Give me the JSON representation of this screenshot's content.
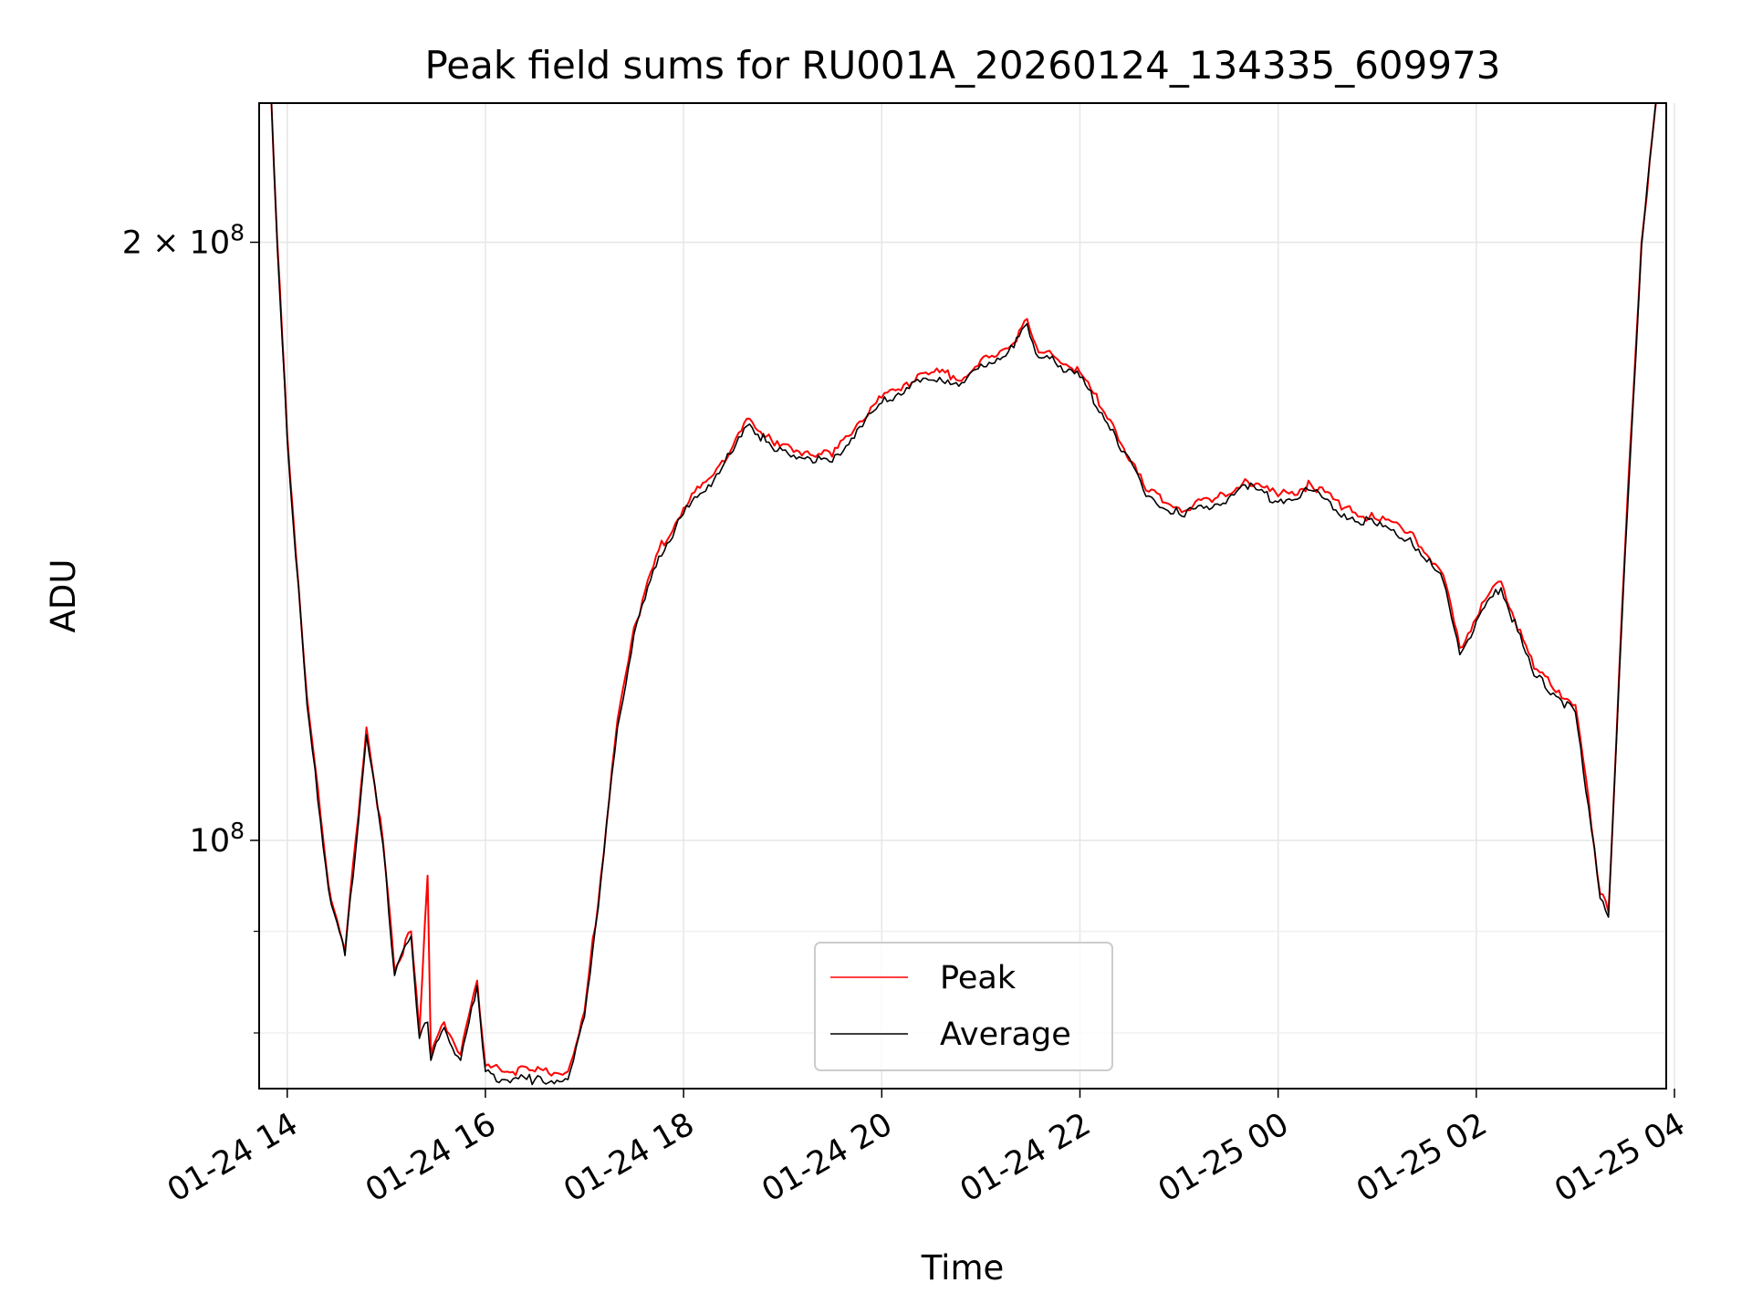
{
  "chart_data": {
    "type": "line",
    "title": "Peak field sums for RU001A_20260124_134335_609973",
    "xlabel": "Time",
    "ylabel": "ADU",
    "yscale": "log",
    "xlim": [
      "01-24 13:43",
      "01-25 03:55"
    ],
    "ylim": [
      75000000,
      235000000
    ],
    "grid": true,
    "legend_position": "bottom-center",
    "x_ticks": [
      "01-24 14",
      "01-24 16",
      "01-24 18",
      "01-24 20",
      "01-24 22",
      "01-25 00",
      "01-25 02",
      "01-25 04"
    ],
    "y_ticks": [
      {
        "value": 100000000,
        "label": "10^8",
        "base": "10",
        "exp": "8"
      },
      {
        "value": 200000000,
        "label": "2 × 10^8",
        "base": "2 × 10",
        "exp": "8"
      }
    ],
    "y_minor_ticks": [
      80000000,
      90000000
    ],
    "series": [
      {
        "name": "Peak",
        "color": "#ff0000",
        "points": [
          [
            "01-24 13:50",
            240000000
          ],
          [
            "01-24 13:54",
            200000000
          ],
          [
            "01-24 14:00",
            160000000
          ],
          [
            "01-24 14:12",
            118000000
          ],
          [
            "01-24 14:25",
            95000000
          ],
          [
            "01-24 14:35",
            88000000
          ],
          [
            "01-24 14:48",
            114000000
          ],
          [
            "01-24 14:58",
            100000000
          ],
          [
            "01-24 15:05",
            86000000
          ],
          [
            "01-24 15:15",
            90000000
          ],
          [
            "01-24 15:20",
            80000000
          ],
          [
            "01-24 15:25",
            96000000
          ],
          [
            "01-24 15:27",
            78000000
          ],
          [
            "01-24 15:35",
            81000000
          ],
          [
            "01-24 15:45",
            78000000
          ],
          [
            "01-24 15:55",
            85000000
          ],
          [
            "01-24 16:00",
            77000000
          ],
          [
            "01-24 16:10",
            76500000
          ],
          [
            "01-24 16:30",
            76500000
          ],
          [
            "01-24 16:50",
            76500000
          ],
          [
            "01-24 17:00",
            82000000
          ],
          [
            "01-24 17:10",
            96000000
          ],
          [
            "01-24 17:20",
            115000000
          ],
          [
            "01-24 17:30",
            128000000
          ],
          [
            "01-24 17:45",
            140000000
          ],
          [
            "01-24 18:00",
            147000000
          ],
          [
            "01-24 18:15",
            152000000
          ],
          [
            "01-24 18:30",
            158000000
          ],
          [
            "01-24 18:40",
            163000000
          ],
          [
            "01-24 18:55",
            158000000
          ],
          [
            "01-24 19:15",
            157000000
          ],
          [
            "01-24 19:30",
            156000000
          ],
          [
            "01-24 19:45",
            162000000
          ],
          [
            "01-24 20:00",
            167000000
          ],
          [
            "01-24 20:15",
            170000000
          ],
          [
            "01-24 20:35",
            172000000
          ],
          [
            "01-24 20:50",
            171000000
          ],
          [
            "01-24 21:05",
            175000000
          ],
          [
            "01-24 21:20",
            178000000
          ],
          [
            "01-24 21:28",
            183000000
          ],
          [
            "01-24 21:35",
            176000000
          ],
          [
            "01-24 21:45",
            175000000
          ],
          [
            "01-24 22:00",
            172000000
          ],
          [
            "01-24 22:20",
            162000000
          ],
          [
            "01-24 22:40",
            150000000
          ],
          [
            "01-24 23:00",
            147000000
          ],
          [
            "01-24 23:20",
            148000000
          ],
          [
            "01-24 23:40",
            152000000
          ],
          [
            "01-25 00:00",
            149000000
          ],
          [
            "01-25 00:20",
            151000000
          ],
          [
            "01-25 00:40",
            147000000
          ],
          [
            "01-25 01:00",
            145000000
          ],
          [
            "01-25 01:20",
            143000000
          ],
          [
            "01-25 01:40",
            136000000
          ],
          [
            "01-25 01:50",
            125000000
          ],
          [
            "01-25 02:05",
            132000000
          ],
          [
            "01-25 02:15",
            135000000
          ],
          [
            "01-25 02:35",
            122000000
          ],
          [
            "01-25 02:50",
            119000000
          ],
          [
            "01-25 03:00",
            117000000
          ],
          [
            "01-25 03:08",
            105000000
          ],
          [
            "01-25 03:15",
            94000000
          ],
          [
            "01-25 03:20",
            92000000
          ],
          [
            "01-25 03:30",
            140000000
          ],
          [
            "01-25 03:40",
            200000000
          ],
          [
            "01-25 03:50",
            240000000
          ]
        ]
      },
      {
        "name": "Average",
        "color": "#000000",
        "points": [
          [
            "01-24 13:50",
            240000000
          ],
          [
            "01-24 13:54",
            199000000
          ],
          [
            "01-24 14:00",
            159000000
          ],
          [
            "01-24 14:12",
            117000000
          ],
          [
            "01-24 14:25",
            94500000
          ],
          [
            "01-24 14:35",
            87500000
          ],
          [
            "01-24 14:48",
            113000000
          ],
          [
            "01-24 14:58",
            99500000
          ],
          [
            "01-24 15:05",
            85500000
          ],
          [
            "01-24 15:15",
            89500000
          ],
          [
            "01-24 15:20",
            79500000
          ],
          [
            "01-24 15:25",
            81000000
          ],
          [
            "01-24 15:27",
            77500000
          ],
          [
            "01-24 15:35",
            80500000
          ],
          [
            "01-24 15:45",
            77500000
          ],
          [
            "01-24 15:55",
            84500000
          ],
          [
            "01-24 16:00",
            76500000
          ],
          [
            "01-24 16:10",
            75800000
          ],
          [
            "01-24 16:30",
            75800000
          ],
          [
            "01-24 16:50",
            75800000
          ],
          [
            "01-24 17:00",
            81500000
          ],
          [
            "01-24 17:10",
            95500000
          ],
          [
            "01-24 17:20",
            114000000
          ],
          [
            "01-24 17:30",
            127000000
          ],
          [
            "01-24 17:45",
            139000000
          ],
          [
            "01-24 18:00",
            146000000
          ],
          [
            "01-24 18:15",
            151000000
          ],
          [
            "01-24 18:30",
            157000000
          ],
          [
            "01-24 18:40",
            162000000
          ],
          [
            "01-24 18:55",
            157000000
          ],
          [
            "01-24 19:15",
            156000000
          ],
          [
            "01-24 19:30",
            155000000
          ],
          [
            "01-24 19:45",
            161000000
          ],
          [
            "01-24 20:00",
            166000000
          ],
          [
            "01-24 20:15",
            169000000
          ],
          [
            "01-24 20:35",
            171000000
          ],
          [
            "01-24 20:50",
            170000000
          ],
          [
            "01-24 21:05",
            174000000
          ],
          [
            "01-24 21:20",
            177000000
          ],
          [
            "01-24 21:28",
            182000000
          ],
          [
            "01-24 21:35",
            175000000
          ],
          [
            "01-24 21:45",
            174000000
          ],
          [
            "01-24 22:00",
            171000000
          ],
          [
            "01-24 22:20",
            161000000
          ],
          [
            "01-24 22:40",
            149000000
          ],
          [
            "01-24 23:00",
            146000000
          ],
          [
            "01-24 23:20",
            147000000
          ],
          [
            "01-24 23:40",
            151000000
          ],
          [
            "01-25 00:00",
            148000000
          ],
          [
            "01-25 00:20",
            150000000
          ],
          [
            "01-25 00:40",
            146000000
          ],
          [
            "01-25 01:00",
            144000000
          ],
          [
            "01-25 01:20",
            142000000
          ],
          [
            "01-25 01:40",
            135000000
          ],
          [
            "01-25 01:50",
            124000000
          ],
          [
            "01-25 02:05",
            131000000
          ],
          [
            "01-25 02:15",
            134000000
          ],
          [
            "01-25 02:35",
            121000000
          ],
          [
            "01-25 02:50",
            118000000
          ],
          [
            "01-25 03:00",
            116000000
          ],
          [
            "01-25 03:08",
            104000000
          ],
          [
            "01-25 03:15",
            93500000
          ],
          [
            "01-25 03:20",
            91500000
          ],
          [
            "01-25 03:30",
            139000000
          ],
          [
            "01-25 03:40",
            199000000
          ],
          [
            "01-25 03:50",
            240000000
          ]
        ]
      }
    ]
  }
}
